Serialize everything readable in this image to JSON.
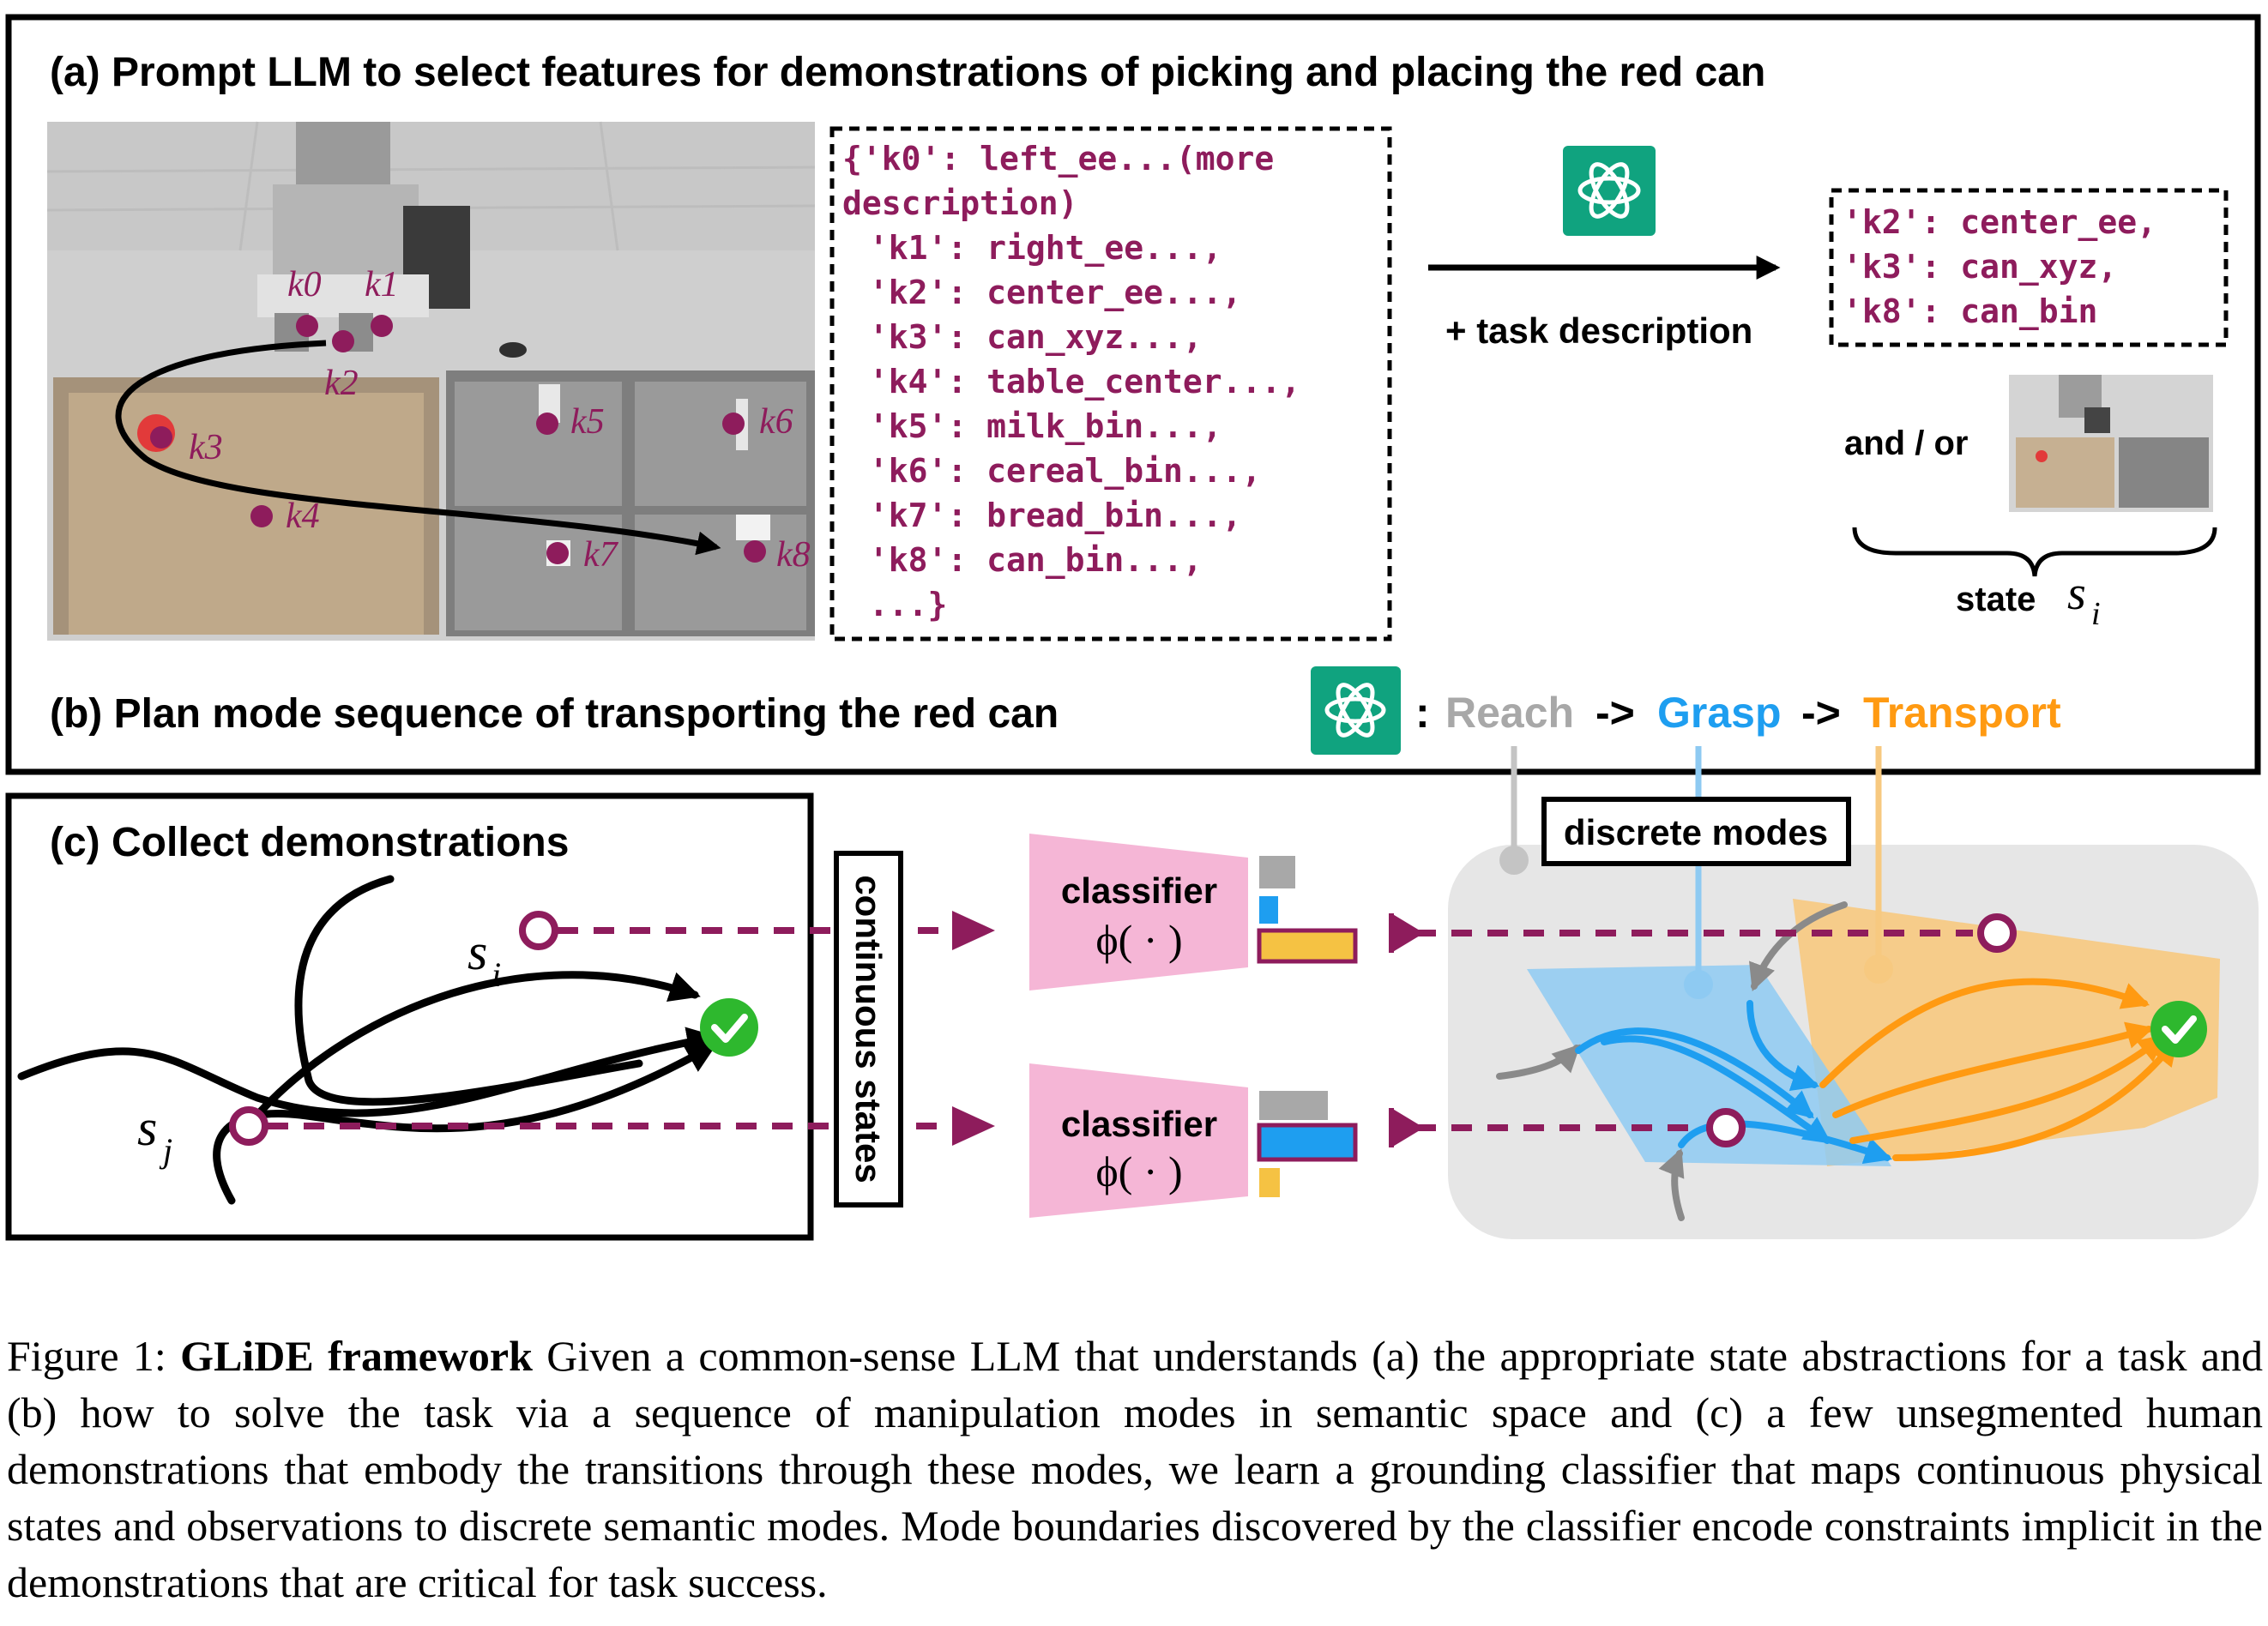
{
  "panel_a": {
    "title": "(a) Prompt LLM to select features for demonstrations of picking and placing the red can",
    "keypoints": [
      "k0",
      "k1",
      "k2",
      "k3",
      "k4",
      "k5",
      "k6",
      "k7",
      "k8"
    ],
    "feature_list": [
      "{'k0': left_ee...(more",
      "description)",
      " 'k1': right_ee...,",
      " 'k2': center_ee...,",
      " 'k3': can_xyz...,",
      " 'k4': table_center...,",
      " 'k5': milk_bin...,",
      " 'k6': cereal_bin...,",
      " 'k7': bread_bin...,",
      " 'k8': can_bin...,",
      " ...}"
    ],
    "arrow_label": "+ task description",
    "selected_features": [
      "'k2': center_ee,",
      "'k3': can_xyz,",
      "'k8': can_bin"
    ],
    "and_or": "and / or",
    "state_label": "state",
    "state_symbol": "s",
    "state_sub": "i"
  },
  "panel_b": {
    "title": "(b) Plan mode sequence of transporting the red can",
    "sep": ":",
    "arrow": "->",
    "modes": [
      {
        "name": "Reach",
        "color": "#a8a8a8"
      },
      {
        "name": "Grasp",
        "color": "#1e9ef0"
      },
      {
        "name": "Transport",
        "color": "#ff9a12"
      }
    ]
  },
  "panel_c": {
    "title": "(c) Collect demonstrations",
    "s_i": "s",
    "s_i_sub": "i",
    "s_j": "s",
    "s_j_sub": "j",
    "continuous_states": "continuous states",
    "classifier_label": "classifier",
    "classifier_fn": "ϕ( · )",
    "discrete_modes": "discrete modes"
  },
  "colors": {
    "accent": "#8e1c5c",
    "classifier": "#f5b6d6",
    "grasp": "#1e9ef0",
    "transport": "#ff9a12",
    "reach": "#a8a8a8",
    "success": "#2eb82e",
    "llm": "#10a37f"
  },
  "caption": {
    "prefix": "Figure 1: ",
    "bold": "GLiDE framework",
    "body": " Given a common-sense LLM that understands (a) the appropriate state abstractions for a task and (b) how to solve the task via a sequence of manipulation modes in semantic space and (c) a few unsegmented human demonstrations that embody the transitions through these modes, we learn a grounding classifier that maps continuous physical states and observations to discrete semantic modes. Mode boundaries discovered by the classifier encode constraints implicit in the demonstrations that are critical for task success."
  }
}
